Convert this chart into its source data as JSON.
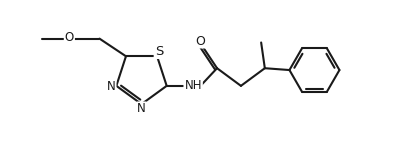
{
  "bg_color": "#ffffff",
  "line_color": "#1a1a1a",
  "line_width": 1.5,
  "font_size": 8.5,
  "figsize": [
    4.08,
    1.48
  ],
  "dpi": 100,
  "xlim": [
    -0.3,
    10.8
  ],
  "ylim": [
    -0.2,
    3.8
  ]
}
